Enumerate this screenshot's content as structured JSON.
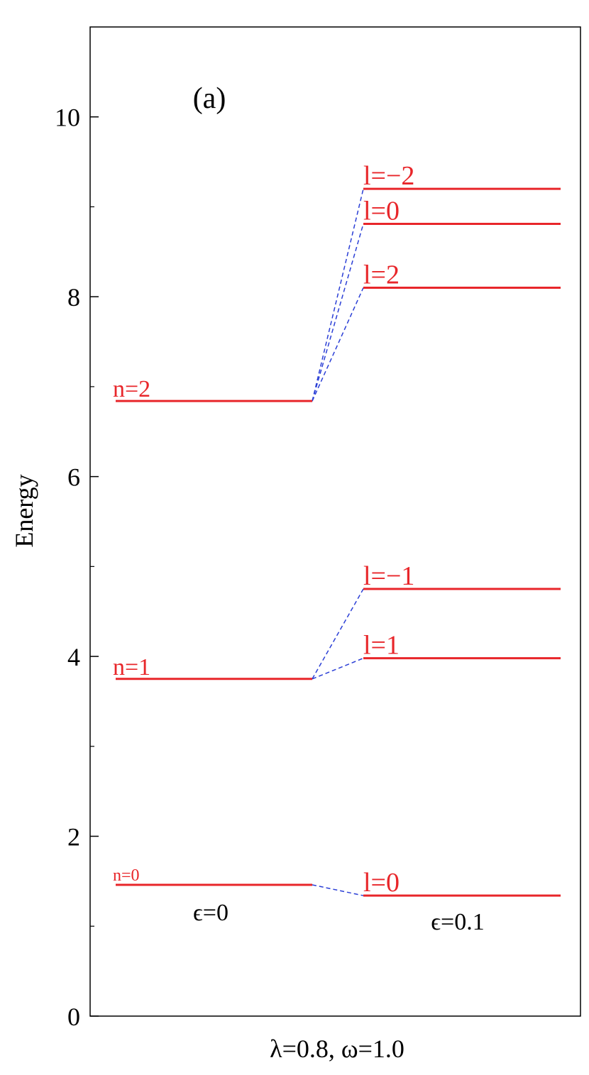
{
  "chart_data": {
    "type": "levels",
    "title": "(a)",
    "ylabel": "Energy",
    "xlabel": "λ=0.8, ω=1.0",
    "ylim": [
      0,
      11
    ],
    "yticks": [
      0,
      2,
      4,
      6,
      8,
      10
    ],
    "yminor_ticks": [
      1,
      3,
      5,
      7,
      9
    ],
    "columns": [
      "ϵ=0",
      "ϵ=0.1"
    ],
    "level_color": "#e8262a",
    "link_color": "#2b3fd6",
    "levels": [
      {
        "label": "n=0",
        "value": 1.46,
        "sublevels": [
          {
            "label": "l=0",
            "value": 1.34
          }
        ]
      },
      {
        "label": "n=1",
        "value": 3.75,
        "sublevels": [
          {
            "label": "l=1",
            "value": 3.98
          },
          {
            "label": "l=−1",
            "value": 4.75
          }
        ]
      },
      {
        "label": "n=2",
        "value": 6.84,
        "sublevels": [
          {
            "label": "l=2",
            "value": 8.1
          },
          {
            "label": "l=0",
            "value": 8.81
          },
          {
            "label": "l=−2",
            "value": 9.2
          }
        ]
      }
    ]
  }
}
